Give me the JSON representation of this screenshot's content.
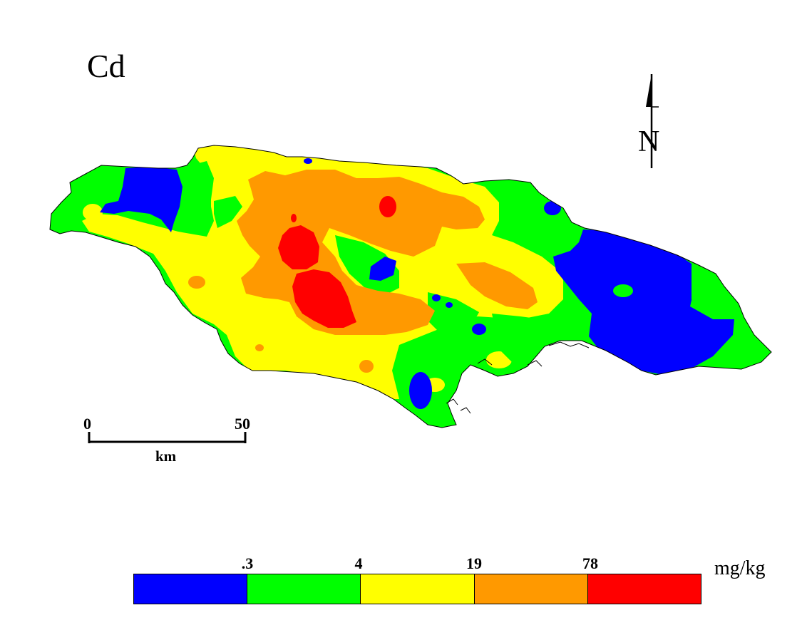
{
  "map": {
    "title": "Cd",
    "north_arrow_label": "N",
    "scale_bar": {
      "start_label": "0",
      "end_label": "50",
      "unit": "km"
    },
    "legend": {
      "unit": "mg/kg",
      "breaks": [
        ".3",
        "4",
        "19",
        "78"
      ],
      "classes": [
        {
          "color": "#0000ff",
          "range": "< .3"
        },
        {
          "color": "#00ff00",
          "range": ".3 – 4"
        },
        {
          "color": "#ffff00",
          "range": "4 – 19"
        },
        {
          "color": "#ff9900",
          "range": "19 – 78"
        },
        {
          "color": "#ff0000",
          "range": "> 78"
        }
      ]
    }
  }
}
